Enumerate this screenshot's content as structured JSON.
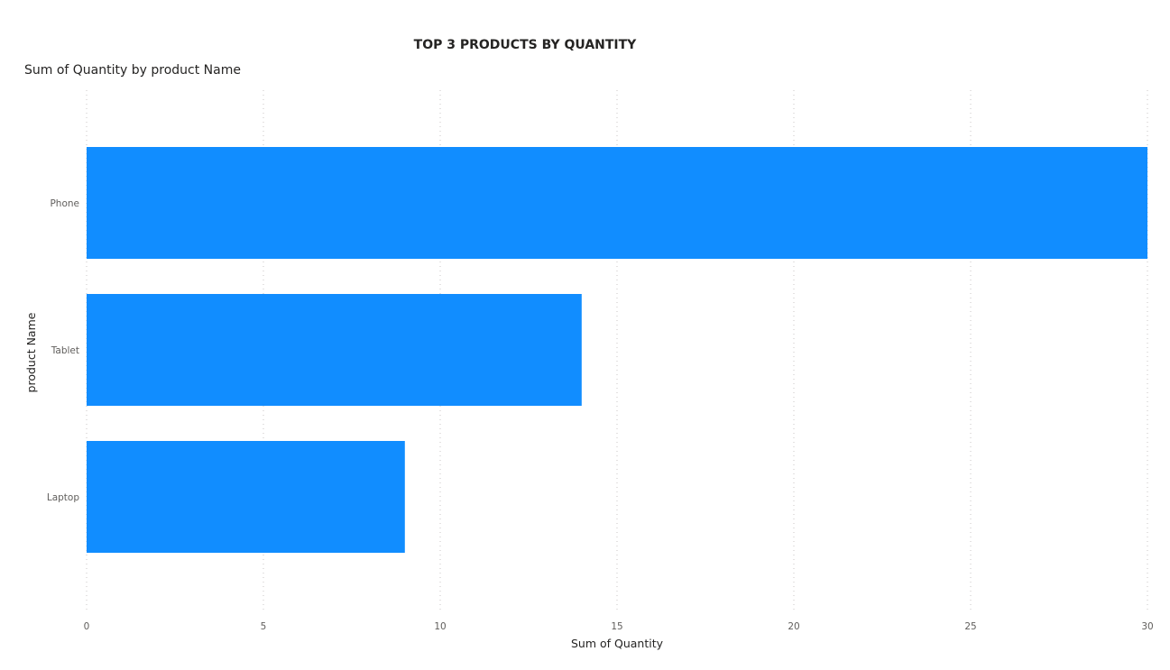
{
  "chart_data": {
    "type": "bar",
    "orientation": "horizontal",
    "title": "TOP 3 PRODUCTS BY QUANTITY",
    "subtitle": "Sum of Quantity by product Name",
    "xlabel": "Sum of Quantity",
    "ylabel": "product Name",
    "categories": [
      "Phone",
      "Tablet",
      "Laptop"
    ],
    "values": [
      30,
      14,
      9
    ],
    "xlim": [
      0,
      30
    ],
    "xticks": [
      "0",
      "5",
      "10",
      "15",
      "20",
      "25",
      "30"
    ],
    "grid": true,
    "bar_color": "#118dff"
  }
}
